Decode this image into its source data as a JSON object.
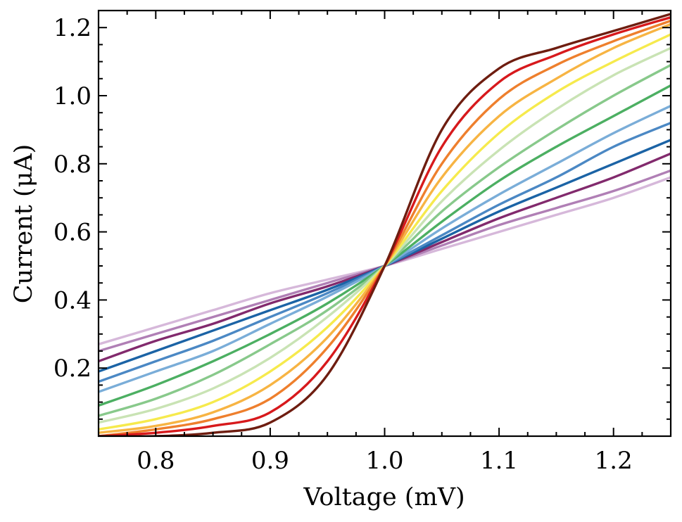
{
  "chart_data": {
    "type": "line",
    "xlabel": "Voltage (mV)",
    "ylabel": "Current (μA)",
    "xlim": [
      0.75,
      1.25
    ],
    "ylim": [
      0.0,
      1.25
    ],
    "x_ticks": [
      0.8,
      0.9,
      1.0,
      1.1,
      1.2
    ],
    "x_tick_labels": [
      "0.8",
      "0.9",
      "1.0",
      "1.1",
      "1.2"
    ],
    "y_ticks": [
      0.2,
      0.4,
      0.6,
      0.8,
      1.0,
      1.2
    ],
    "y_tick_labels": [
      "0.2",
      "0.4",
      "0.6",
      "0.8",
      "1.0",
      "1.2"
    ],
    "grid": false,
    "legend": false,
    "x": [
      0.75,
      0.8,
      0.85,
      0.9,
      0.95,
      1.0,
      1.05,
      1.1,
      1.15,
      1.2,
      1.25
    ],
    "series": [
      {
        "color": "#d6b8da",
        "values": [
          0.27,
          0.32,
          0.37,
          0.42,
          0.46,
          0.5,
          0.55,
          0.6,
          0.65,
          0.7,
          0.76
        ]
      },
      {
        "color": "#b07fb5",
        "values": [
          0.25,
          0.3,
          0.35,
          0.4,
          0.45,
          0.5,
          0.56,
          0.62,
          0.67,
          0.72,
          0.78
        ]
      },
      {
        "color": "#822a6d",
        "values": [
          0.22,
          0.28,
          0.33,
          0.39,
          0.44,
          0.5,
          0.57,
          0.64,
          0.7,
          0.76,
          0.83
        ]
      },
      {
        "color": "#1b63a5",
        "values": [
          0.19,
          0.25,
          0.31,
          0.37,
          0.43,
          0.5,
          0.58,
          0.66,
          0.73,
          0.8,
          0.87
        ]
      },
      {
        "color": "#4b88c4",
        "values": [
          0.16,
          0.22,
          0.28,
          0.35,
          0.42,
          0.5,
          0.59,
          0.68,
          0.76,
          0.85,
          0.92
        ]
      },
      {
        "color": "#7aadd8",
        "values": [
          0.13,
          0.19,
          0.25,
          0.33,
          0.41,
          0.5,
          0.61,
          0.71,
          0.8,
          0.89,
          0.97
        ]
      },
      {
        "color": "#4caf62",
        "values": [
          0.09,
          0.15,
          0.22,
          0.3,
          0.39,
          0.5,
          0.63,
          0.75,
          0.85,
          0.94,
          1.03
        ]
      },
      {
        "color": "#88c98b",
        "values": [
          0.06,
          0.11,
          0.18,
          0.27,
          0.37,
          0.5,
          0.66,
          0.79,
          0.9,
          1.0,
          1.09
        ]
      },
      {
        "color": "#c9e3b4",
        "values": [
          0.04,
          0.08,
          0.14,
          0.23,
          0.35,
          0.5,
          0.69,
          0.84,
          0.96,
          1.06,
          1.14
        ]
      },
      {
        "color": "#f6ea4d",
        "values": [
          0.02,
          0.05,
          0.1,
          0.19,
          0.32,
          0.5,
          0.72,
          0.89,
          1.01,
          1.1,
          1.18
        ]
      },
      {
        "color": "#f7b443",
        "values": [
          0.01,
          0.03,
          0.07,
          0.15,
          0.29,
          0.5,
          0.76,
          0.94,
          1.05,
          1.14,
          1.21
        ]
      },
      {
        "color": "#ee7f2d",
        "values": [
          0.0,
          0.02,
          0.05,
          0.11,
          0.26,
          0.5,
          0.8,
          0.99,
          1.09,
          1.16,
          1.22
        ]
      },
      {
        "color": "#d7191c",
        "values": [
          0.0,
          0.01,
          0.03,
          0.07,
          0.22,
          0.5,
          0.85,
          1.04,
          1.12,
          1.18,
          1.23
        ]
      },
      {
        "color": "#6e1d10",
        "values": [
          0.0,
          0.0,
          0.01,
          0.04,
          0.18,
          0.5,
          0.9,
          1.08,
          1.14,
          1.19,
          1.24
        ]
      }
    ]
  }
}
